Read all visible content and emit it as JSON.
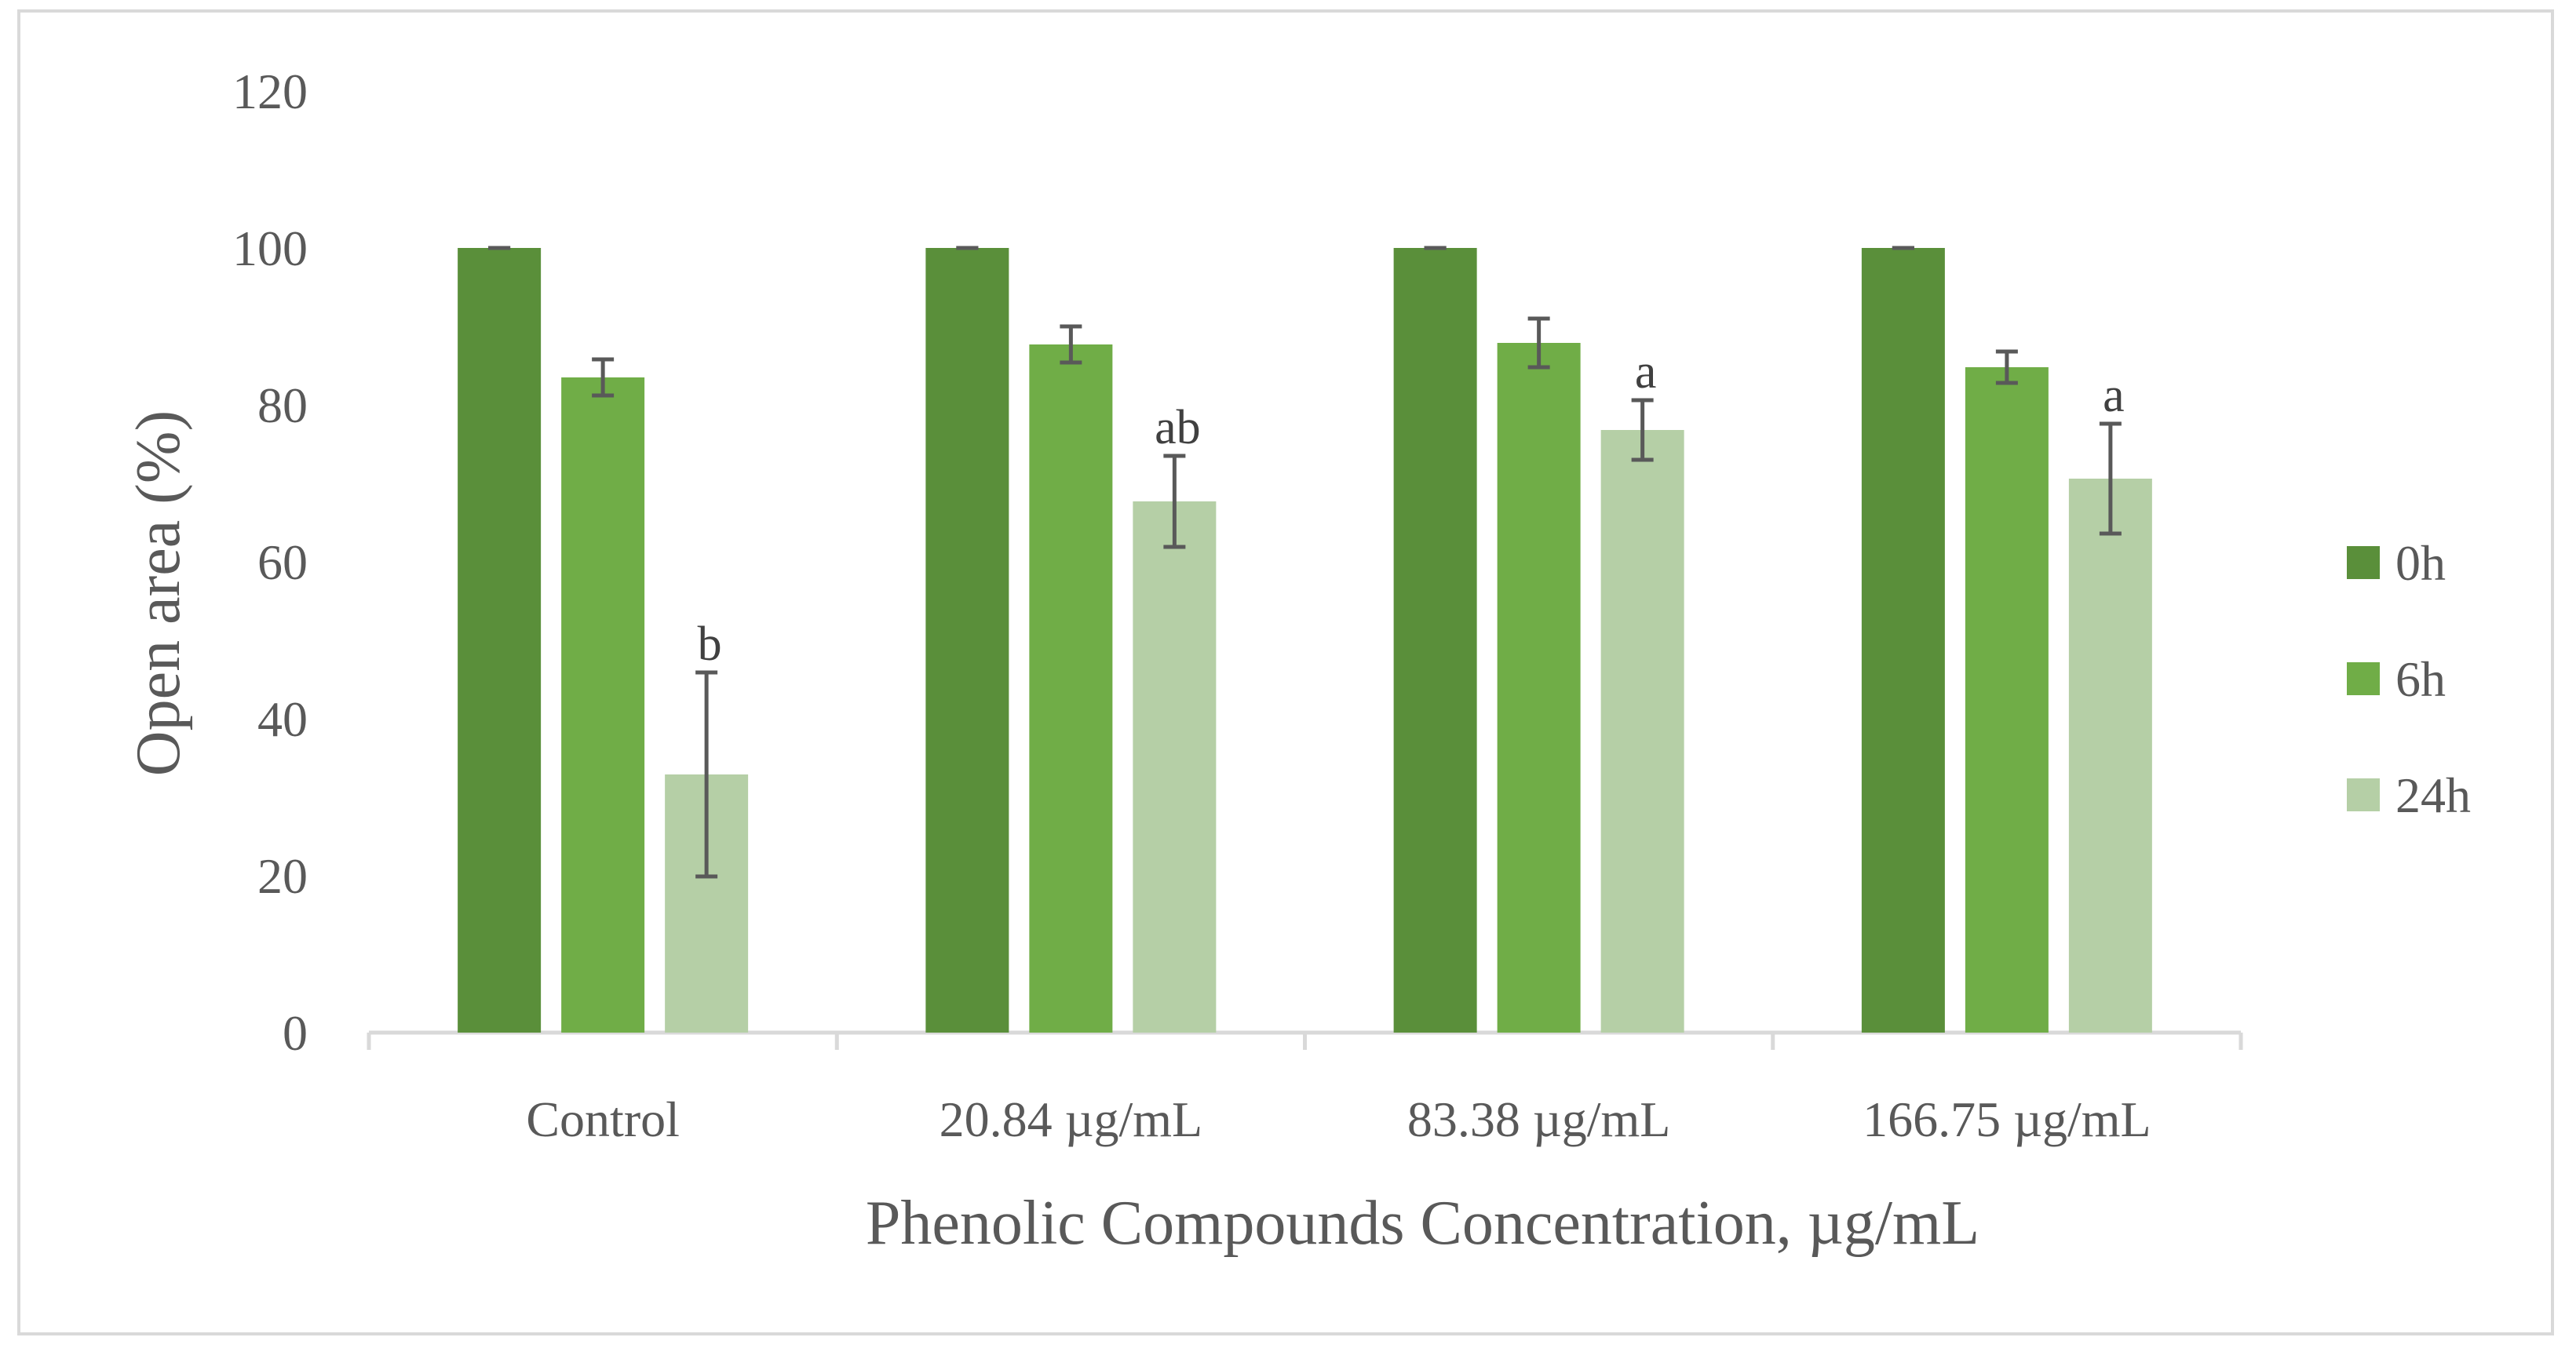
{
  "chart_data": {
    "type": "bar",
    "title": "",
    "xlabel": "Phenolic Compounds Concentration, µg/mL",
    "ylabel": "Open area (%)",
    "ylim": [
      0,
      120
    ],
    "yticks": [
      "0",
      "20",
      "40",
      "60",
      "80",
      "100",
      "120"
    ],
    "grid": false,
    "legend_position": "right",
    "categories": [
      "Control",
      "20.84 µg/mL",
      "83.38 µg/mL",
      "166.75 µg/mL"
    ],
    "series": [
      {
        "name": "0h",
        "color": "#5a8f3a",
        "values": [
          100,
          100,
          100,
          100
        ],
        "errors": [
          0,
          0,
          0,
          0
        ],
        "labels": [
          "",
          "",
          "",
          ""
        ]
      },
      {
        "name": "6h",
        "color": "#70ad47",
        "values": [
          83.5,
          87.7,
          87.9,
          84.8
        ],
        "errors": [
          2.3,
          2.3,
          3.1,
          2.0
        ],
        "labels": [
          "",
          "",
          "",
          ""
        ]
      },
      {
        "name": "24h",
        "color": "#b5cfa6",
        "values": [
          32.9,
          67.7,
          76.8,
          70.6
        ],
        "errors": [
          13.0,
          5.8,
          3.8,
          7.0
        ],
        "labels": [
          "b",
          "ab",
          "a",
          "a"
        ]
      }
    ]
  }
}
